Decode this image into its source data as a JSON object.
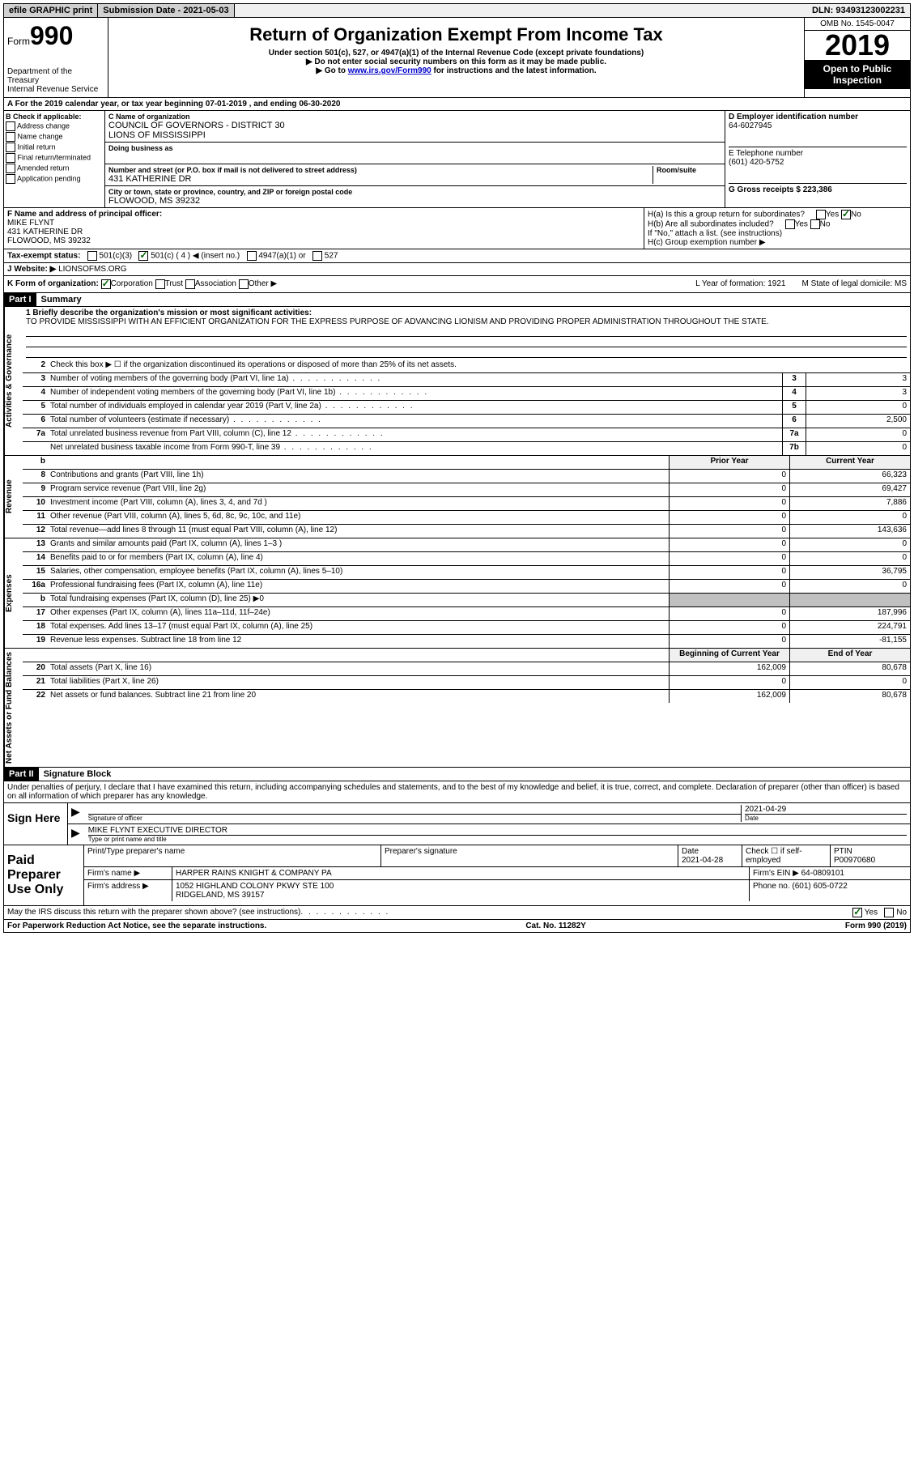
{
  "topbar": {
    "efile": "efile GRAPHIC print",
    "submission_label": "Submission Date - 2021-05-03",
    "dln": "DLN: 93493123002231"
  },
  "header": {
    "form_prefix": "Form",
    "form_num": "990",
    "dept": "Department of the Treasury\nInternal Revenue Service",
    "title": "Return of Organization Exempt From Income Tax",
    "sub1": "Under section 501(c), 527, or 4947(a)(1) of the Internal Revenue Code (except private foundations)",
    "sub2": "Do not enter social security numbers on this form as it may be made public.",
    "sub3_pre": "Go to ",
    "sub3_link": "www.irs.gov/Form990",
    "sub3_post": " for instructions and the latest information.",
    "omb": "OMB No. 1545-0047",
    "year": "2019",
    "open": "Open to Public Inspection"
  },
  "lineA": "A For the 2019 calendar year, or tax year beginning 07-01-2019    , and ending 06-30-2020",
  "colB": {
    "title": "B Check if applicable:",
    "opts": [
      "Address change",
      "Name change",
      "Initial return",
      "Final return/terminated",
      "Amended return",
      "Application pending"
    ]
  },
  "colC": {
    "name_label": "C Name of organization",
    "name": "COUNCIL OF GOVERNORS - DISTRICT 30\nLIONS OF MISSISSIPPI",
    "dba_label": "Doing business as",
    "addr_label": "Number and street (or P.O. box if mail is not delivered to street address)",
    "room_label": "Room/suite",
    "addr": "431 KATHERINE DR",
    "city_label": "City or town, state or province, country, and ZIP or foreign postal code",
    "city": "FLOWOOD, MS  39232"
  },
  "colD": {
    "ein_label": "D Employer identification number",
    "ein": "64-6027945",
    "tel_label": "E Telephone number",
    "tel": "(601) 420-5752",
    "gross_label": "G Gross receipts $ 223,386"
  },
  "rowF": {
    "label": "F  Name and address of principal officer:",
    "name": "MIKE FLYNT",
    "addr1": "431 KATHERINE DR",
    "addr2": "FLOWOOD, MS  39232"
  },
  "rowH": {
    "a": "H(a)  Is this a group return for subordinates?",
    "b": "H(b)  Are all subordinates included?",
    "b2": "If \"No,\" attach a list. (see instructions)",
    "c": "H(c)  Group exemption number ▶"
  },
  "taxStatus": {
    "label": "Tax-exempt status:",
    "opts": [
      "501(c)(3)",
      "501(c) ( 4 ) ◀ (insert no.)",
      "4947(a)(1) or",
      "527"
    ]
  },
  "website": {
    "label": "J Website: ▶",
    "val": "LIONSOFMS.ORG"
  },
  "rowK": {
    "label": "K Form of organization:",
    "opts": [
      "Corporation",
      "Trust",
      "Association",
      "Other ▶"
    ],
    "year_label": "L Year of formation: 1921",
    "state_label": "M State of legal domicile: MS"
  },
  "part1": {
    "header": "Part I",
    "title": "Summary",
    "mission_label": "1  Briefly describe the organization's mission or most significant activities:",
    "mission": "TO PROVIDE MISSISSIPPI WITH AN EFFICIENT ORGANIZATION FOR THE EXPRESS PURPOSE OF ADVANCING LIONISM AND PROVIDING PROPER ADMINISTRATION THROUGHOUT THE STATE.",
    "line2": "Check this box ▶ ☐  if the organization discontinued its operations or disposed of more than 25% of its net assets."
  },
  "governance": {
    "side": "Activities & Governance",
    "rows": [
      {
        "n": "3",
        "d": "Number of voting members of the governing body (Part VI, line 1a)",
        "b": "3",
        "v": "3"
      },
      {
        "n": "4",
        "d": "Number of independent voting members of the governing body (Part VI, line 1b)",
        "b": "4",
        "v": "3"
      },
      {
        "n": "5",
        "d": "Total number of individuals employed in calendar year 2019 (Part V, line 2a)",
        "b": "5",
        "v": "0"
      },
      {
        "n": "6",
        "d": "Total number of volunteers (estimate if necessary)",
        "b": "6",
        "v": "2,500"
      },
      {
        "n": "7a",
        "d": "Total unrelated business revenue from Part VIII, column (C), line 12",
        "b": "7a",
        "v": "0"
      },
      {
        "n": "",
        "d": "Net unrelated business taxable income from Form 990-T, line 39",
        "b": "7b",
        "v": "0"
      }
    ]
  },
  "revenue": {
    "side": "Revenue",
    "header_prior": "Prior Year",
    "header_curr": "Current Year",
    "rows": [
      {
        "n": "8",
        "d": "Contributions and grants (Part VIII, line 1h)",
        "p": "0",
        "c": "66,323"
      },
      {
        "n": "9",
        "d": "Program service revenue (Part VIII, line 2g)",
        "p": "0",
        "c": "69,427"
      },
      {
        "n": "10",
        "d": "Investment income (Part VIII, column (A), lines 3, 4, and 7d )",
        "p": "0",
        "c": "7,886"
      },
      {
        "n": "11",
        "d": "Other revenue (Part VIII, column (A), lines 5, 6d, 8c, 9c, 10c, and 11e)",
        "p": "0",
        "c": "0"
      },
      {
        "n": "12",
        "d": "Total revenue—add lines 8 through 11 (must equal Part VIII, column (A), line 12)",
        "p": "0",
        "c": "143,636"
      }
    ]
  },
  "expenses": {
    "side": "Expenses",
    "rows": [
      {
        "n": "13",
        "d": "Grants and similar amounts paid (Part IX, column (A), lines 1–3 )",
        "p": "0",
        "c": "0"
      },
      {
        "n": "14",
        "d": "Benefits paid to or for members (Part IX, column (A), line 4)",
        "p": "0",
        "c": "0"
      },
      {
        "n": "15",
        "d": "Salaries, other compensation, employee benefits (Part IX, column (A), lines 5–10)",
        "p": "0",
        "c": "36,795"
      },
      {
        "n": "16a",
        "d": "Professional fundraising fees (Part IX, column (A), line 11e)",
        "p": "0",
        "c": "0"
      },
      {
        "n": "b",
        "d": "Total fundraising expenses (Part IX, column (D), line 25) ▶0",
        "p": "",
        "c": "",
        "gray": true
      },
      {
        "n": "17",
        "d": "Other expenses (Part IX, column (A), lines 11a–11d, 11f–24e)",
        "p": "0",
        "c": "187,996"
      },
      {
        "n": "18",
        "d": "Total expenses. Add lines 13–17 (must equal Part IX, column (A), line 25)",
        "p": "0",
        "c": "224,791"
      },
      {
        "n": "19",
        "d": "Revenue less expenses. Subtract line 18 from line 12",
        "p": "0",
        "c": "-81,155"
      }
    ]
  },
  "netassets": {
    "side": "Net Assets or Fund Balances",
    "header_prior": "Beginning of Current Year",
    "header_curr": "End of Year",
    "rows": [
      {
        "n": "20",
        "d": "Total assets (Part X, line 16)",
        "p": "162,009",
        "c": "80,678"
      },
      {
        "n": "21",
        "d": "Total liabilities (Part X, line 26)",
        "p": "0",
        "c": "0"
      },
      {
        "n": "22",
        "d": "Net assets or fund balances. Subtract line 21 from line 20",
        "p": "162,009",
        "c": "80,678"
      }
    ]
  },
  "part2": {
    "header": "Part II",
    "title": "Signature Block",
    "intro": "Under penalties of perjury, I declare that I have examined this return, including accompanying schedules and statements, and to the best of my knowledge and belief, it is true, correct, and complete. Declaration of preparer (other than officer) is based on all information of which preparer has any knowledge."
  },
  "sign": {
    "left": "Sign Here",
    "sig_label": "Signature of officer",
    "date": "2021-04-29",
    "date_label": "Date",
    "name": "MIKE FLYNT EXECUTIVE DIRECTOR",
    "name_label": "Type or print name and title"
  },
  "preparer": {
    "left": "Paid Preparer Use Only",
    "h1": "Print/Type preparer's name",
    "h2": "Preparer's signature",
    "h3": "Date",
    "date": "2021-04-28",
    "h4": "Check ☐ if self-employed",
    "h5": "PTIN",
    "ptin": "P00970680",
    "firm_label": "Firm's name    ▶",
    "firm": "HARPER RAINS KNIGHT & COMPANY PA",
    "ein_label": "Firm's EIN ▶",
    "ein": "64-0809101",
    "addr_label": "Firm's address ▶",
    "addr1": "1052 HIGHLAND COLONY PKWY STE 100",
    "addr2": "RIDGELAND, MS  39157",
    "phone_label": "Phone no.",
    "phone": "(601) 605-0722"
  },
  "discuss": "May the IRS discuss this return with the preparer shown above? (see instructions)",
  "footer": {
    "left": "For Paperwork Reduction Act Notice, see the separate instructions.",
    "mid": "Cat. No. 11282Y",
    "right": "Form 990 (2019)"
  }
}
